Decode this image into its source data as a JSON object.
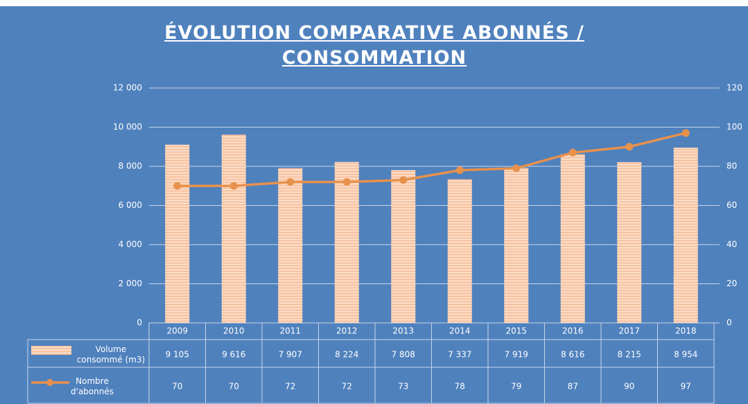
{
  "chart_data": {
    "type": "bar",
    "title": "ÉVOLUTION COMPARATIVE ABONNÉS / CONSOMMATION",
    "categories": [
      "2009",
      "2010",
      "2011",
      "2012",
      "2013",
      "2014",
      "2015",
      "2016",
      "2017",
      "2018"
    ],
    "series": [
      {
        "name": "Volume consommé (m3)",
        "type": "bar",
        "color": "#f9cdb0",
        "values": [
          9105,
          9616,
          7907,
          8224,
          7808,
          7337,
          7919,
          8616,
          8215,
          8954
        ],
        "value_labels": [
          "9 105",
          "9 616",
          "7 907",
          "8 224",
          "7 808",
          "7 337",
          "7 919",
          "8 616",
          "8 215",
          "8 954"
        ]
      },
      {
        "name": "Nombre d'abonnés",
        "type": "line",
        "axis": "y2",
        "color": "#e8914c",
        "values": [
          70,
          70,
          72,
          72,
          73,
          78,
          79,
          87,
          90,
          97
        ]
      }
    ],
    "ylim": [
      0,
      12000
    ],
    "yticks": [
      0,
      {
        "value": 2000,
        "label": "2 000"
      },
      {
        "value": 4000,
        "label": "4 000"
      },
      {
        "value": 6000,
        "label": "6 000"
      },
      {
        "value": 8000,
        "label": "8 000"
      },
      {
        "value": 10000,
        "label": "10 000"
      },
      {
        "value": 12000,
        "label": "12 000"
      }
    ],
    "y2lim": [
      0,
      120
    ],
    "y2ticks": [
      0,
      20,
      40,
      60,
      80,
      100,
      120
    ],
    "grid": true,
    "data_table": true
  }
}
